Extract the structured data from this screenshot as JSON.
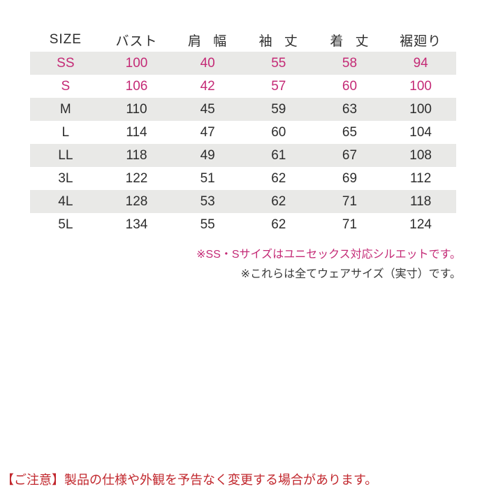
{
  "colors": {
    "accent-pink": "#c42a76",
    "caution-red": "#c1272d",
    "row-gray": "#e9e9e7",
    "text-dark": "#2d2d2d"
  },
  "table": {
    "headers": [
      "SIZE",
      "バスト",
      "肩 幅",
      "袖 丈",
      "着 丈",
      "裾廻り"
    ],
    "rows": [
      {
        "size": "SS",
        "values": [
          "100",
          "40",
          "55",
          "58",
          "94"
        ]
      },
      {
        "size": "S",
        "values": [
          "106",
          "42",
          "57",
          "60",
          "100"
        ]
      },
      {
        "size": "M",
        "values": [
          "110",
          "45",
          "59",
          "63",
          "100"
        ]
      },
      {
        "size": "L",
        "values": [
          "114",
          "47",
          "60",
          "65",
          "104"
        ]
      },
      {
        "size": "LL",
        "values": [
          "118",
          "49",
          "61",
          "67",
          "108"
        ]
      },
      {
        "size": "3L",
        "values": [
          "122",
          "51",
          "62",
          "69",
          "112"
        ]
      },
      {
        "size": "4L",
        "values": [
          "128",
          "53",
          "62",
          "71",
          "118"
        ]
      },
      {
        "size": "5L",
        "values": [
          "134",
          "55",
          "62",
          "71",
          "124"
        ]
      }
    ]
  },
  "notes": [
    {
      "text": "※SS・Sサイズはユニセックス対応シルエットです。"
    },
    {
      "text": "※これらは全てウェアサイズ（実寸）です。"
    }
  ],
  "caution": {
    "text": "【ご注意】製品の仕様や外観を予告なく変更する場合があります。"
  }
}
